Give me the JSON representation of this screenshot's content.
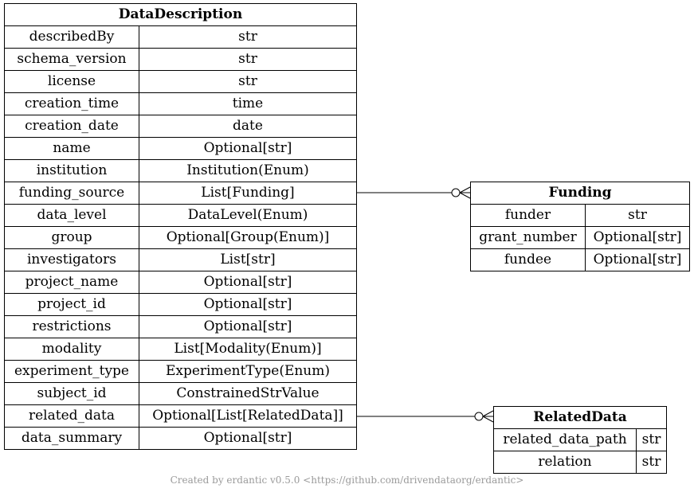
{
  "entities": {
    "data_description": {
      "title": "DataDescription",
      "fields": [
        {
          "name": "describedBy",
          "type": "str"
        },
        {
          "name": "schema_version",
          "type": "str"
        },
        {
          "name": "license",
          "type": "str"
        },
        {
          "name": "creation_time",
          "type": "time"
        },
        {
          "name": "creation_date",
          "type": "date"
        },
        {
          "name": "name",
          "type": "Optional[str]"
        },
        {
          "name": "institution",
          "type": "Institution(Enum)"
        },
        {
          "name": "funding_source",
          "type": "List[Funding]"
        },
        {
          "name": "data_level",
          "type": "DataLevel(Enum)"
        },
        {
          "name": "group",
          "type": "Optional[Group(Enum)]"
        },
        {
          "name": "investigators",
          "type": "List[str]"
        },
        {
          "name": "project_name",
          "type": "Optional[str]"
        },
        {
          "name": "project_id",
          "type": "Optional[str]"
        },
        {
          "name": "restrictions",
          "type": "Optional[str]"
        },
        {
          "name": "modality",
          "type": "List[Modality(Enum)]"
        },
        {
          "name": "experiment_type",
          "type": "ExperimentType(Enum)"
        },
        {
          "name": "subject_id",
          "type": "ConstrainedStrValue"
        },
        {
          "name": "related_data",
          "type": "Optional[List[RelatedData]]"
        },
        {
          "name": "data_summary",
          "type": "Optional[str]"
        }
      ]
    },
    "funding": {
      "title": "Funding",
      "fields": [
        {
          "name": "funder",
          "type": "str"
        },
        {
          "name": "grant_number",
          "type": "Optional[str]"
        },
        {
          "name": "fundee",
          "type": "Optional[str]"
        }
      ]
    },
    "related_data": {
      "title": "RelatedData",
      "fields": [
        {
          "name": "related_data_path",
          "type": "str"
        },
        {
          "name": "relation",
          "type": "str"
        }
      ]
    }
  },
  "relations": [
    {
      "from": "DataDescription.funding_source",
      "to": "Funding",
      "cardinality": "zero-or-many"
    },
    {
      "from": "DataDescription.related_data",
      "to": "RelatedData",
      "cardinality": "zero-or-many"
    }
  ],
  "footer": "Created by erdantic v0.5.0 <https://github.com/drivendataorg/erdantic>"
}
